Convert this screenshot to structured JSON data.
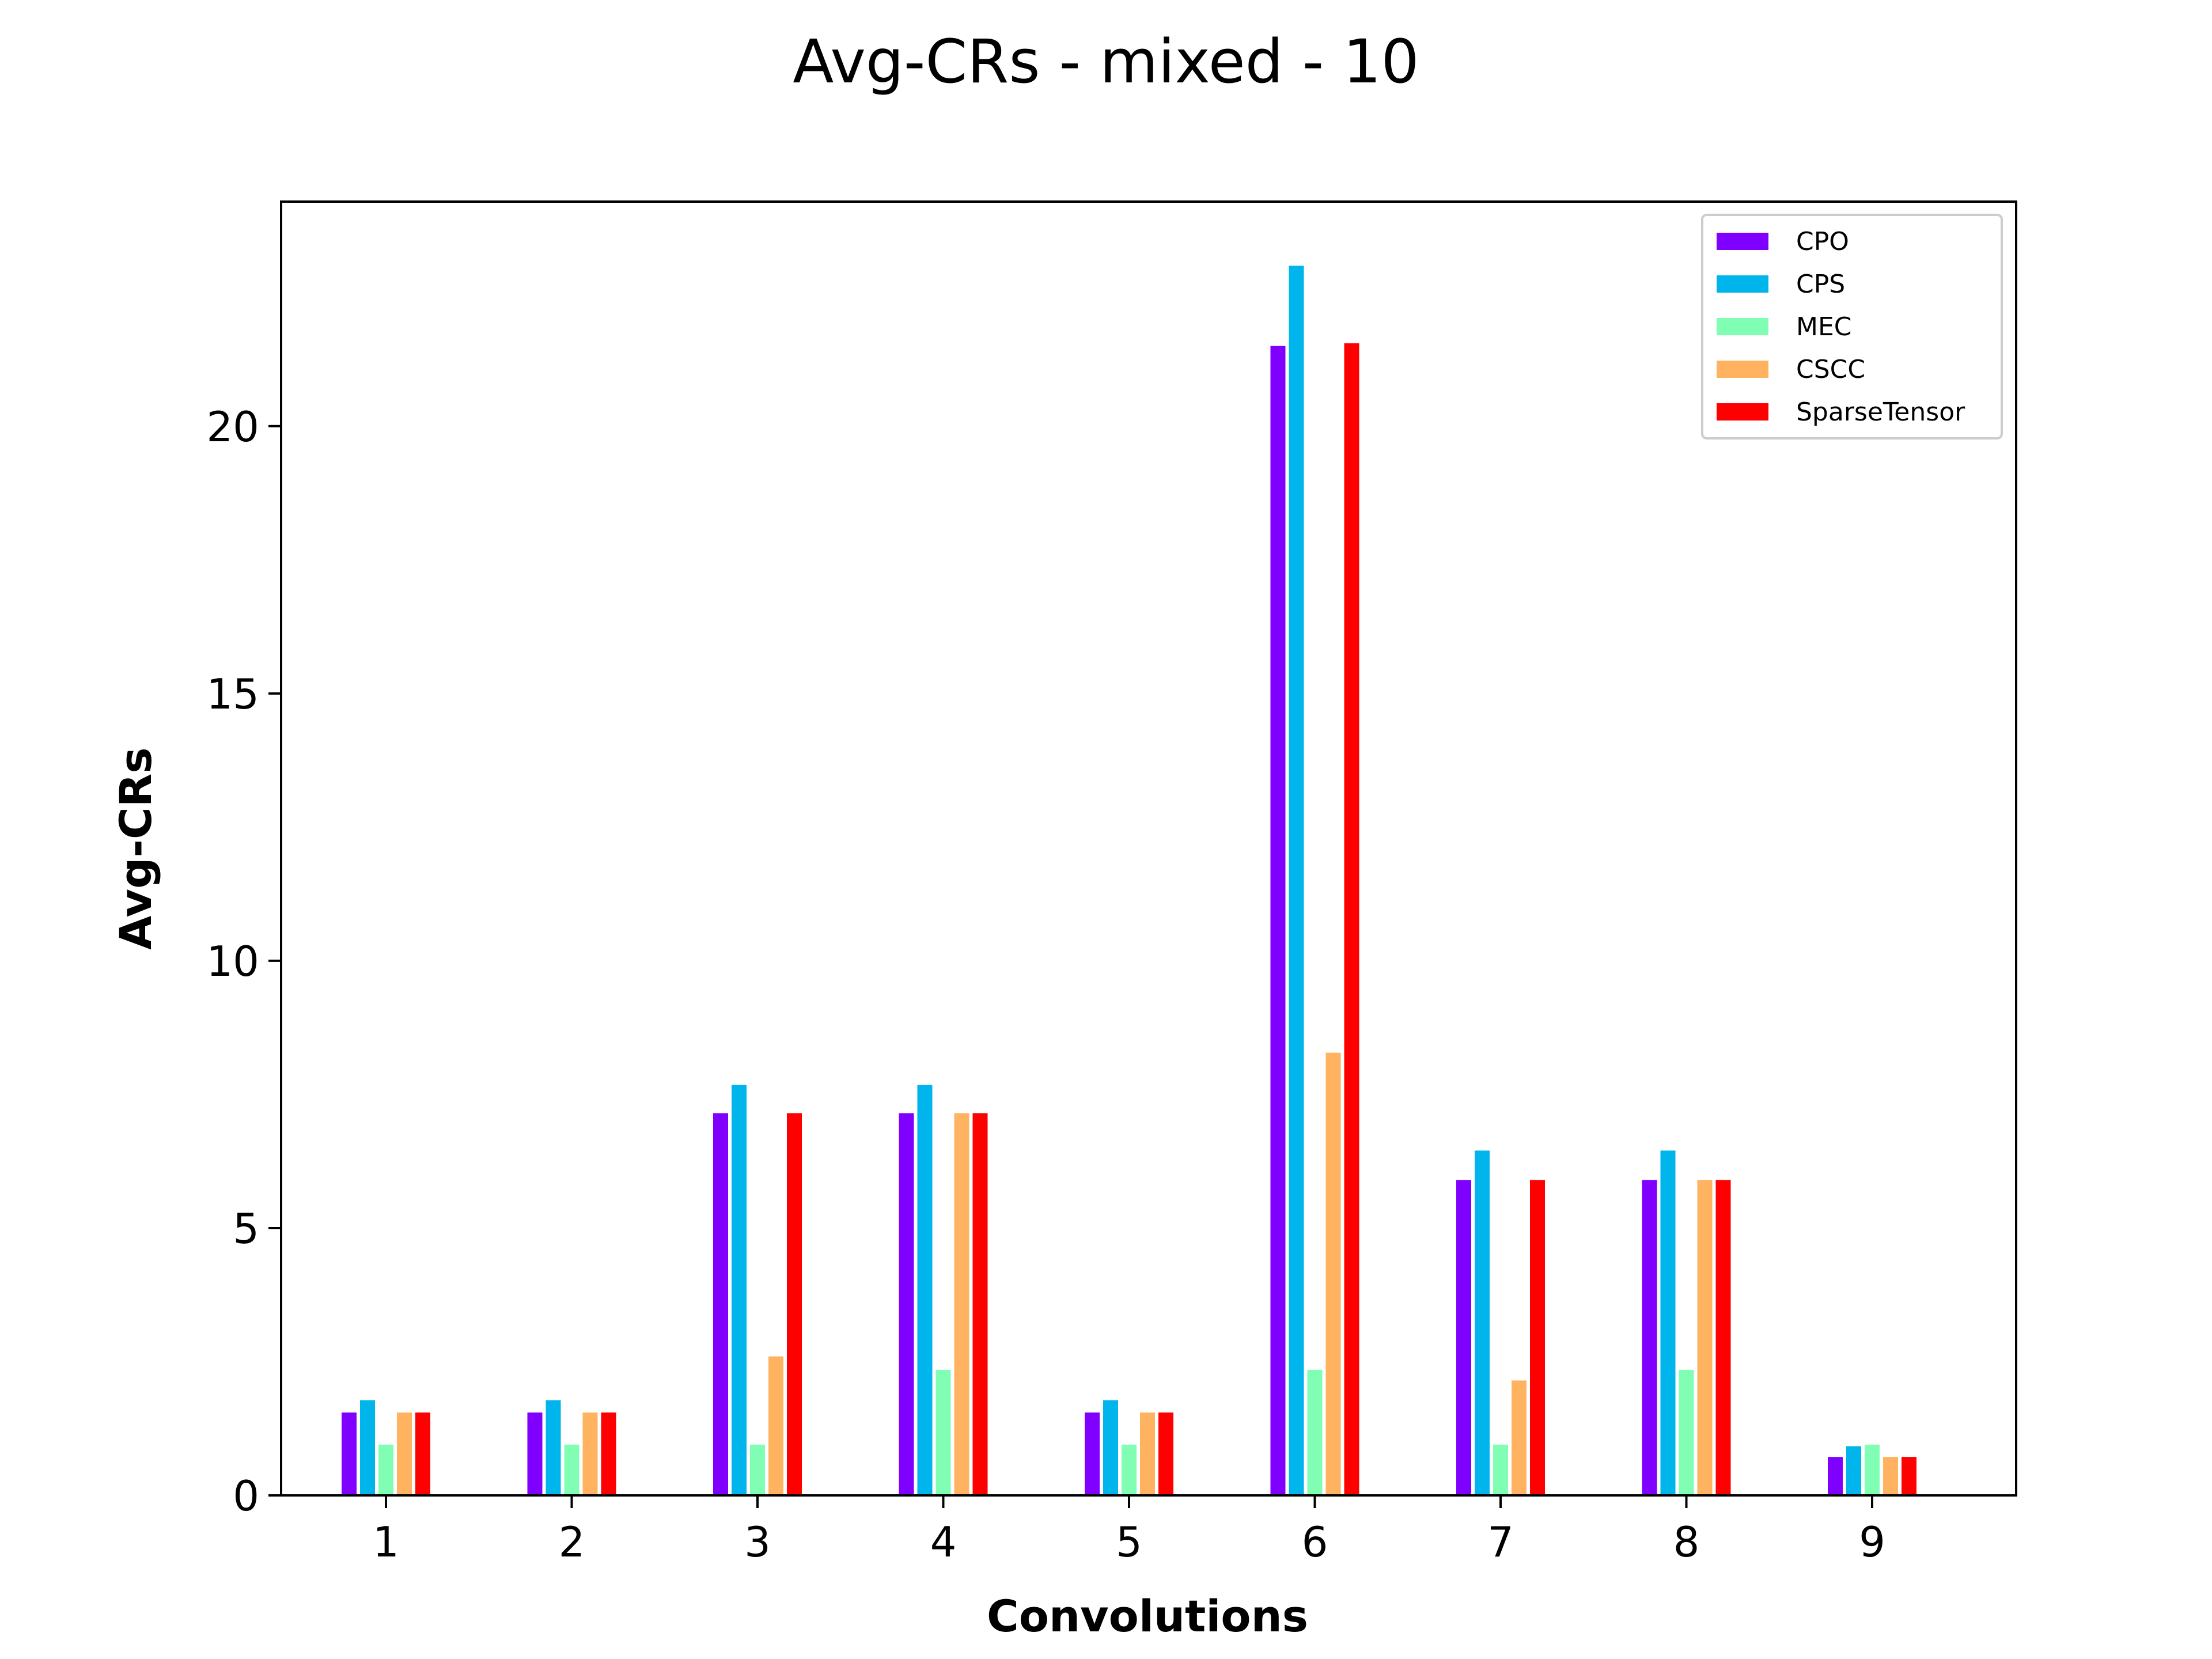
{
  "chart_data": {
    "type": "bar",
    "title": "Avg-CRs - mixed - 10",
    "xlabel": "Convolutions",
    "ylabel": "Avg-CRs",
    "categories": [
      "1",
      "2",
      "3",
      "4",
      "5",
      "6",
      "7",
      "8",
      "9"
    ],
    "ylim": [
      0,
      24.2
    ],
    "yticks": [
      0,
      5,
      10,
      15,
      20
    ],
    "ytick_labels": [
      "0",
      "5",
      "10",
      "15",
      "20"
    ],
    "grid": false,
    "legend_position": "upper-right",
    "series": [
      {
        "name": "CPO",
        "color": "#8000ff",
        "values": [
          1.55,
          1.55,
          7.15,
          7.15,
          1.55,
          21.5,
          5.9,
          5.9,
          0.72
        ]
      },
      {
        "name": "CPS",
        "color": "#00b5eb",
        "values": [
          1.78,
          1.78,
          7.68,
          7.68,
          1.78,
          23.0,
          6.45,
          6.45,
          0.92
        ]
      },
      {
        "name": "MEC",
        "color": "#80ffb4",
        "values": [
          0.95,
          0.95,
          0.95,
          2.35,
          0.95,
          2.35,
          0.95,
          2.35,
          0.95
        ]
      },
      {
        "name": "CSCC",
        "color": "#ffb360",
        "values": [
          1.55,
          1.55,
          2.6,
          7.15,
          1.55,
          8.28,
          2.15,
          5.9,
          0.72
        ]
      },
      {
        "name": "SparseTensor",
        "color": "#ff0000",
        "values": [
          1.55,
          1.55,
          7.15,
          7.15,
          1.55,
          21.55,
          5.9,
          5.9,
          0.72
        ]
      }
    ]
  }
}
